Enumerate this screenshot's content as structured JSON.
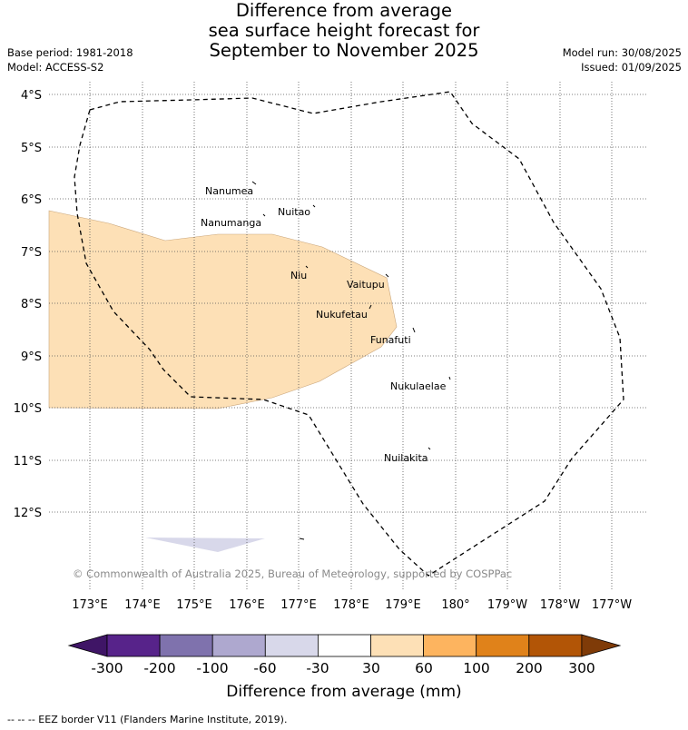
{
  "title": {
    "line1": "Difference from average",
    "line2": "sea surface height forecast for",
    "line3": "September to November 2025"
  },
  "meta": {
    "base_period": "Base period: 1981-2018",
    "model": "Model: ACCESS-S2",
    "model_run": "Model run: 30/08/2025",
    "issued": "Issued: 01/09/2025"
  },
  "map": {
    "lat_labels": [
      "4°S",
      "5°S",
      "6°S",
      "7°S",
      "8°S",
      "9°S",
      "10°S",
      "11°S",
      "12°S"
    ],
    "lon_labels": [
      "173°E",
      "174°E",
      "175°E",
      "176°E",
      "177°E",
      "178°E",
      "179°E",
      "180°",
      "179°W",
      "178°W",
      "177°W"
    ],
    "islands": [
      "Nanumea",
      "Nuitao",
      "Nanumanga",
      "Niu",
      "Vaitupu",
      "Nukufetau",
      "Funafuti",
      "Nukulaelae",
      "Nuilakita"
    ],
    "anomaly_region_color": "#fde0b6",
    "negative_region_color": "#d8d8ea",
    "eez_border_color": "#000000",
    "copyright": "© Commonwealth of Australia 2025, Bureau of Meteorology, supported by COSPPac"
  },
  "colorbar": {
    "ticks": [
      "-300",
      "-200",
      "-100",
      "-60",
      "-30",
      "30",
      "60",
      "100",
      "200",
      "300"
    ],
    "colors": [
      "#3f1566",
      "#57238a",
      "#7f72ad",
      "#aea8cf",
      "#d8d8ea",
      "#ffffff",
      "#fde0b6",
      "#fdb45f",
      "#e0821a",
      "#b25506",
      "#7f3b08"
    ],
    "title": "Difference from average (mm)"
  },
  "footer": {
    "legend_text": "-- -- -- EEZ border V11 (Flanders Marine Institute, 2019)."
  }
}
